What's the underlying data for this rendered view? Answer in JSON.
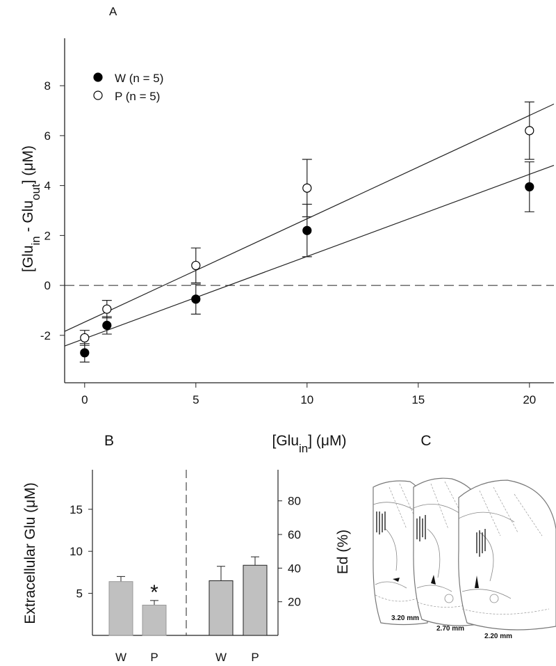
{
  "chart_data": [
    {
      "type": "scatter",
      "panel_label": "A",
      "xlabel": [
        "[Glu",
        "in",
        "] (μM)"
      ],
      "ylabel": [
        "[Glu",
        "in",
        " - Glu",
        "out",
        "] (μM)"
      ],
      "x": [
        0,
        1,
        5,
        10,
        20
      ],
      "series": [
        {
          "name": "W (n = 5)",
          "color": "#000000",
          "values": [
            -2.7,
            -1.6,
            -0.55,
            2.2,
            3.95
          ],
          "errors": [
            0.37,
            0.35,
            0.6,
            1.05,
            1.0
          ],
          "fit": {
            "slope": 0.329,
            "intercept": -2.13
          }
        },
        {
          "name": "P (n = 5)",
          "color": "#ffffff",
          "values": [
            -2.1,
            -0.95,
            0.8,
            3.9,
            6.2
          ],
          "errors": [
            0.3,
            0.35,
            0.7,
            1.15,
            1.15
          ],
          "fit": {
            "slope": 0.414,
            "intercept": -1.47
          }
        }
      ],
      "reference_line": 0,
      "xlim": [
        -0.9,
        21.1
      ],
      "ylim": [
        -3.9,
        9.9
      ],
      "xticks": [
        0,
        5,
        10,
        15,
        20
      ],
      "yticks": [
        -2,
        0,
        2,
        4,
        6,
        8
      ],
      "legend": "upper left"
    },
    {
      "type": "bar",
      "panel_label": "B",
      "ylabel": "Extracellular Glu (μM)",
      "y2label": "Ed (%)",
      "panels": [
        {
          "categories": [
            "W",
            "P"
          ],
          "values": [
            6.4,
            3.6
          ],
          "errors": [
            0.6,
            0.55
          ],
          "color": "#c0c0c0",
          "annotation": "*"
        },
        {
          "categories": [
            "W",
            "P"
          ],
          "values": [
            32.5,
            41.7
          ],
          "errors": [
            8.6,
            5
          ],
          "color": "#c0c0c0",
          "axis": "y2"
        }
      ],
      "ylim": [
        0,
        19.7
      ],
      "yticks": [
        5,
        10,
        15
      ],
      "y2lim": [
        0,
        98.5
      ],
      "y2ticks": [
        20,
        40,
        60,
        80
      ]
    }
  ],
  "panel_c": {
    "label": "C",
    "sections": [
      "3.20 mm",
      "2.70 mm",
      "2.20 mm"
    ]
  }
}
